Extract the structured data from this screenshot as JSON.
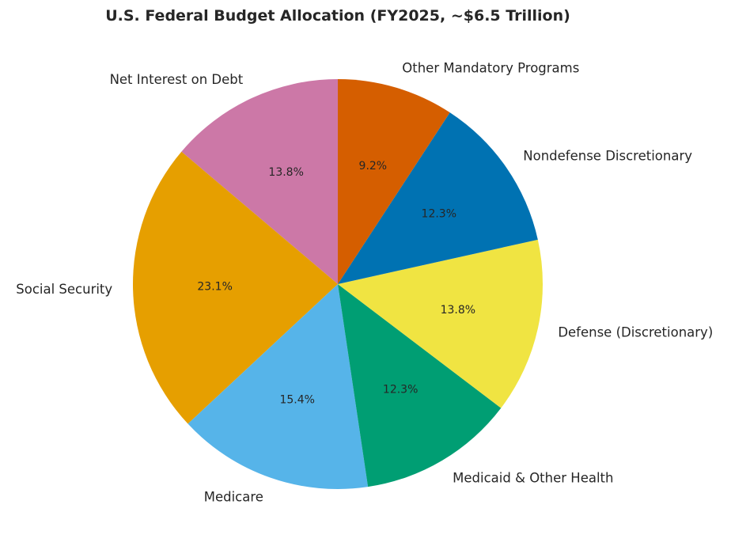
{
  "chart_data": {
    "type": "pie",
    "title": "U.S. Federal Budget Allocation (FY2025, ~$6.5 Trillion)",
    "start_angle_deg": 90,
    "direction": "counterclockwise",
    "slices": [
      {
        "label": "Net Interest on Debt",
        "value": 13.8,
        "pct_label": "13.8%",
        "color": "#CC78A7"
      },
      {
        "label": "Social Security",
        "value": 23.1,
        "pct_label": "23.1%",
        "color": "#E69F00"
      },
      {
        "label": "Medicare",
        "value": 15.4,
        "pct_label": "15.4%",
        "color": "#56B4E9"
      },
      {
        "label": "Medicaid & Other Health",
        "value": 12.3,
        "pct_label": "12.3%",
        "color": "#009E73"
      },
      {
        "label": "Defense (Discretionary)",
        "value": 13.8,
        "pct_label": "13.8%",
        "color": "#F0E442"
      },
      {
        "label": "Nondefense Discretionary",
        "value": 12.3,
        "pct_label": "12.3%",
        "color": "#0072B2"
      },
      {
        "label": "Other Mandatory Programs",
        "value": 9.2,
        "pct_label": "9.2%",
        "color": "#D55E00"
      }
    ]
  }
}
